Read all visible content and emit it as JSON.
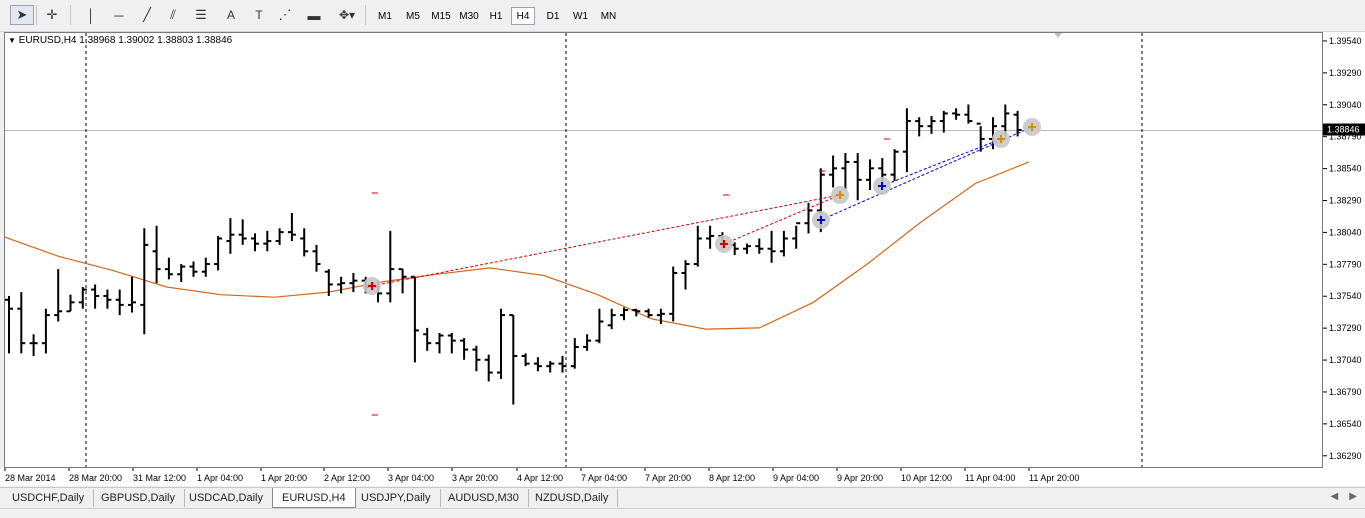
{
  "toolbar": {
    "tools": [
      "cursor-icon",
      "crosshair-icon",
      "vertical-line-icon",
      "horizontal-line-icon",
      "trendline-icon",
      "andrews-pitchfork-icon",
      "fibonacci-icon",
      "text-icon",
      "text-label-icon",
      "fibonacci-fan-icon",
      "rectangle-icon",
      "arrows-icon"
    ],
    "timeframes": [
      "M1",
      "M5",
      "M15",
      "M30",
      "H1",
      "H4",
      "D1",
      "W1",
      "MN"
    ],
    "active_timeframe": "H4"
  },
  "chart": {
    "header_symbol": "EURUSD,H4",
    "header_values": "1.38968 1.39002 1.38803 1.38846",
    "current_price": "1.38846",
    "price_labels": [
      "1.39540",
      "1.39290",
      "1.39040",
      "1.38790",
      "1.38540",
      "1.38290",
      "1.38040",
      "1.37790",
      "1.37540",
      "1.37290",
      "1.37040",
      "1.36790",
      "1.36540",
      "1.36290"
    ],
    "time_labels": [
      "28 Mar 2014",
      "28 Mar 20:00",
      "31 Mar 12:00",
      "1 Apr 04:00",
      "1 Apr 20:00",
      "2 Apr 12:00",
      "3 Apr 04:00",
      "3 Apr 20:00",
      "4 Apr 12:00",
      "7 Apr 04:00",
      "7 Apr 20:00",
      "8 Apr 12:00",
      "9 Apr 04:00",
      "9 Apr 20:00",
      "10 Apr 12:00",
      "11 Apr 04:00",
      "11 Apr 20:00"
    ]
  },
  "chart_data": {
    "type": "ohlc",
    "symbol": "EURUSD",
    "timeframe": "H4",
    "price_range": [
      1.3621,
      1.3961
    ],
    "ma_color": "#d2691e",
    "bar_color": "#000000",
    "bars": [
      [
        1.3752,
        1.3755,
        1.371,
        1.3745
      ],
      [
        1.3745,
        1.3758,
        1.371,
        1.3718
      ],
      [
        1.3718,
        1.3725,
        1.3708,
        1.3718
      ],
      [
        1.3718,
        1.3745,
        1.371,
        1.374
      ],
      [
        1.374,
        1.3776,
        1.3735,
        1.3743
      ],
      [
        1.3743,
        1.3756,
        1.3743,
        1.375
      ],
      [
        1.375,
        1.3762,
        1.3745,
        1.376
      ],
      [
        1.376,
        1.3764,
        1.3745,
        1.3755
      ],
      [
        1.3755,
        1.376,
        1.3745,
        1.3752
      ],
      [
        1.3752,
        1.376,
        1.374,
        1.3748
      ],
      [
        1.3748,
        1.377,
        1.3742,
        1.375
      ],
      [
        1.3748,
        1.3808,
        1.3725,
        1.3795
      ],
      [
        1.379,
        1.381,
        1.3765,
        1.3776
      ],
      [
        1.3776,
        1.3785,
        1.3768,
        1.3772
      ],
      [
        1.3772,
        1.378,
        1.3766,
        1.3778
      ],
      [
        1.3778,
        1.3782,
        1.377,
        1.3774
      ],
      [
        1.3774,
        1.3785,
        1.377,
        1.378
      ],
      [
        1.378,
        1.3802,
        1.3775,
        1.38
      ],
      [
        1.3798,
        1.3816,
        1.3788,
        1.3803
      ],
      [
        1.3803,
        1.3815,
        1.3795,
        1.38
      ],
      [
        1.38,
        1.3804,
        1.379,
        1.3796
      ],
      [
        1.3796,
        1.3806,
        1.379,
        1.3798
      ],
      [
        1.3798,
        1.3808,
        1.3795,
        1.3805
      ],
      [
        1.3805,
        1.382,
        1.3798,
        1.3803
      ],
      [
        1.38,
        1.3808,
        1.3786,
        1.379
      ],
      [
        1.379,
        1.3795,
        1.3774,
        1.378
      ],
      [
        1.3774,
        1.3776,
        1.3755,
        1.3764
      ],
      [
        1.3764,
        1.377,
        1.3757,
        1.3765
      ],
      [
        1.3765,
        1.3773,
        1.3758,
        1.3767
      ],
      [
        1.3767,
        1.377,
        1.3757,
        1.3762
      ],
      [
        1.3762,
        1.3767,
        1.375,
        1.3757
      ],
      [
        1.3757,
        1.3806,
        1.375,
        1.3776
      ],
      [
        1.3776,
        1.3776,
        1.3757,
        1.377
      ],
      [
        1.377,
        1.377,
        1.3703,
        1.3728
      ],
      [
        1.3725,
        1.373,
        1.3712,
        1.3718
      ],
      [
        1.3718,
        1.3726,
        1.371,
        1.3724
      ],
      [
        1.3724,
        1.3726,
        1.371,
        1.372
      ],
      [
        1.372,
        1.3722,
        1.3705,
        1.3713
      ],
      [
        1.3713,
        1.3716,
        1.3696,
        1.3705
      ],
      [
        1.3705,
        1.3709,
        1.3688,
        1.3695
      ],
      [
        1.3695,
        1.3745,
        1.369,
        1.374
      ],
      [
        1.374,
        1.374,
        1.367,
        1.3708
      ],
      [
        1.3708,
        1.371,
        1.37,
        1.3702
      ],
      [
        1.3702,
        1.3707,
        1.3696,
        1.37
      ],
      [
        1.37,
        1.3704,
        1.3695,
        1.3702
      ],
      [
        1.3702,
        1.3708,
        1.3695,
        1.37
      ],
      [
        1.37,
        1.3722,
        1.3698,
        1.3715
      ],
      [
        1.3715,
        1.3725,
        1.3712,
        1.372
      ],
      [
        1.372,
        1.3745,
        1.3718,
        1.3735
      ],
      [
        1.3732,
        1.3745,
        1.3729,
        1.374
      ],
      [
        1.374,
        1.3746,
        1.3736,
        1.3744
      ],
      [
        1.3744,
        1.3745,
        1.3739,
        1.3743
      ],
      [
        1.3743,
        1.3745,
        1.3738,
        1.374
      ],
      [
        1.374,
        1.3745,
        1.3733,
        1.3741
      ],
      [
        1.3741,
        1.3778,
        1.3735,
        1.3773
      ],
      [
        1.3773,
        1.3783,
        1.376,
        1.378
      ],
      [
        1.378,
        1.381,
        1.3778,
        1.38
      ],
      [
        1.38,
        1.381,
        1.3792,
        1.3802
      ],
      [
        1.3802,
        1.3805,
        1.3792,
        1.3798
      ],
      [
        1.3795,
        1.3797,
        1.3787,
        1.3792
      ],
      [
        1.3792,
        1.3796,
        1.3788,
        1.3794
      ],
      [
        1.3794,
        1.38,
        1.3788,
        1.3792
      ],
      [
        1.3792,
        1.3806,
        1.3781,
        1.379
      ],
      [
        1.379,
        1.3806,
        1.3786,
        1.38
      ],
      [
        1.38,
        1.381,
        1.3792,
        1.3812
      ],
      [
        1.3812,
        1.3828,
        1.3804,
        1.3822
      ],
      [
        1.3822,
        1.3855,
        1.3805,
        1.385
      ],
      [
        1.385,
        1.3865,
        1.384,
        1.3855
      ],
      [
        1.3855,
        1.3867,
        1.3838,
        1.386
      ],
      [
        1.386,
        1.3867,
        1.383,
        1.3846
      ],
      [
        1.3846,
        1.3862,
        1.3838,
        1.3855
      ],
      [
        1.3855,
        1.3863,
        1.3843,
        1.385
      ],
      [
        1.385,
        1.387,
        1.3845,
        1.3868
      ],
      [
        1.3868,
        1.3902,
        1.3852,
        1.3892
      ],
      [
        1.3892,
        1.3895,
        1.388,
        1.3888
      ],
      [
        1.3888,
        1.3896,
        1.3882,
        1.3892
      ],
      [
        1.3892,
        1.39,
        1.3883,
        1.3898
      ],
      [
        1.3898,
        1.3902,
        1.3893,
        1.3897
      ],
      [
        1.3897,
        1.3905,
        1.389,
        1.3892
      ],
      [
        1.389,
        1.3888,
        1.3868,
        1.3878
      ],
      [
        1.3878,
        1.3895,
        1.387,
        1.3888
      ],
      [
        1.3888,
        1.3905,
        1.388,
        1.3898
      ],
      [
        1.3897,
        1.39,
        1.388,
        1.3885
      ]
    ],
    "moving_average": [
      1.3801,
      1.3786,
      1.3775,
      1.3762,
      1.3756,
      1.3754,
      1.3758,
      1.3766,
      1.3772,
      1.3777,
      1.3771,
      1.3756,
      1.3737,
      1.3729,
      1.373,
      1.375,
      1.378,
      1.3813,
      1.3843,
      1.386
    ]
  }
}
